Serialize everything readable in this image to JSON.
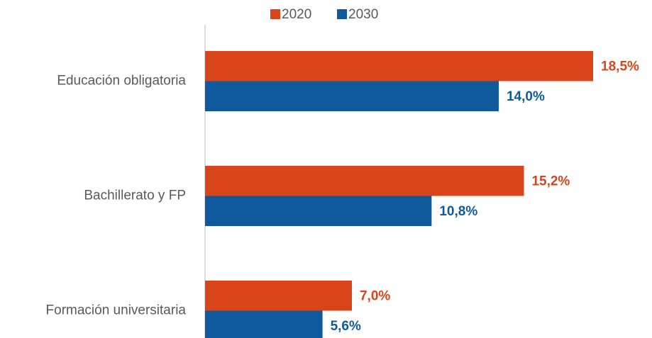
{
  "chart_data": {
    "type": "bar",
    "orientation": "horizontal",
    "categories": [
      "Educación obligatoria",
      "Bachillerato y FP",
      "Formación universitaria"
    ],
    "series": [
      {
        "name": "2020",
        "color": "#d9441a",
        "values": [
          18.5,
          15.2,
          7.0
        ],
        "value_labels": [
          "18,5%",
          "15,2%",
          "7,0%"
        ]
      },
      {
        "name": "2030",
        "color": "#0f5a9c",
        "values": [
          14.0,
          10.8,
          5.6
        ],
        "value_labels": [
          "14,0%",
          "10,8%",
          "5,6%"
        ]
      }
    ],
    "legend": "top"
  }
}
